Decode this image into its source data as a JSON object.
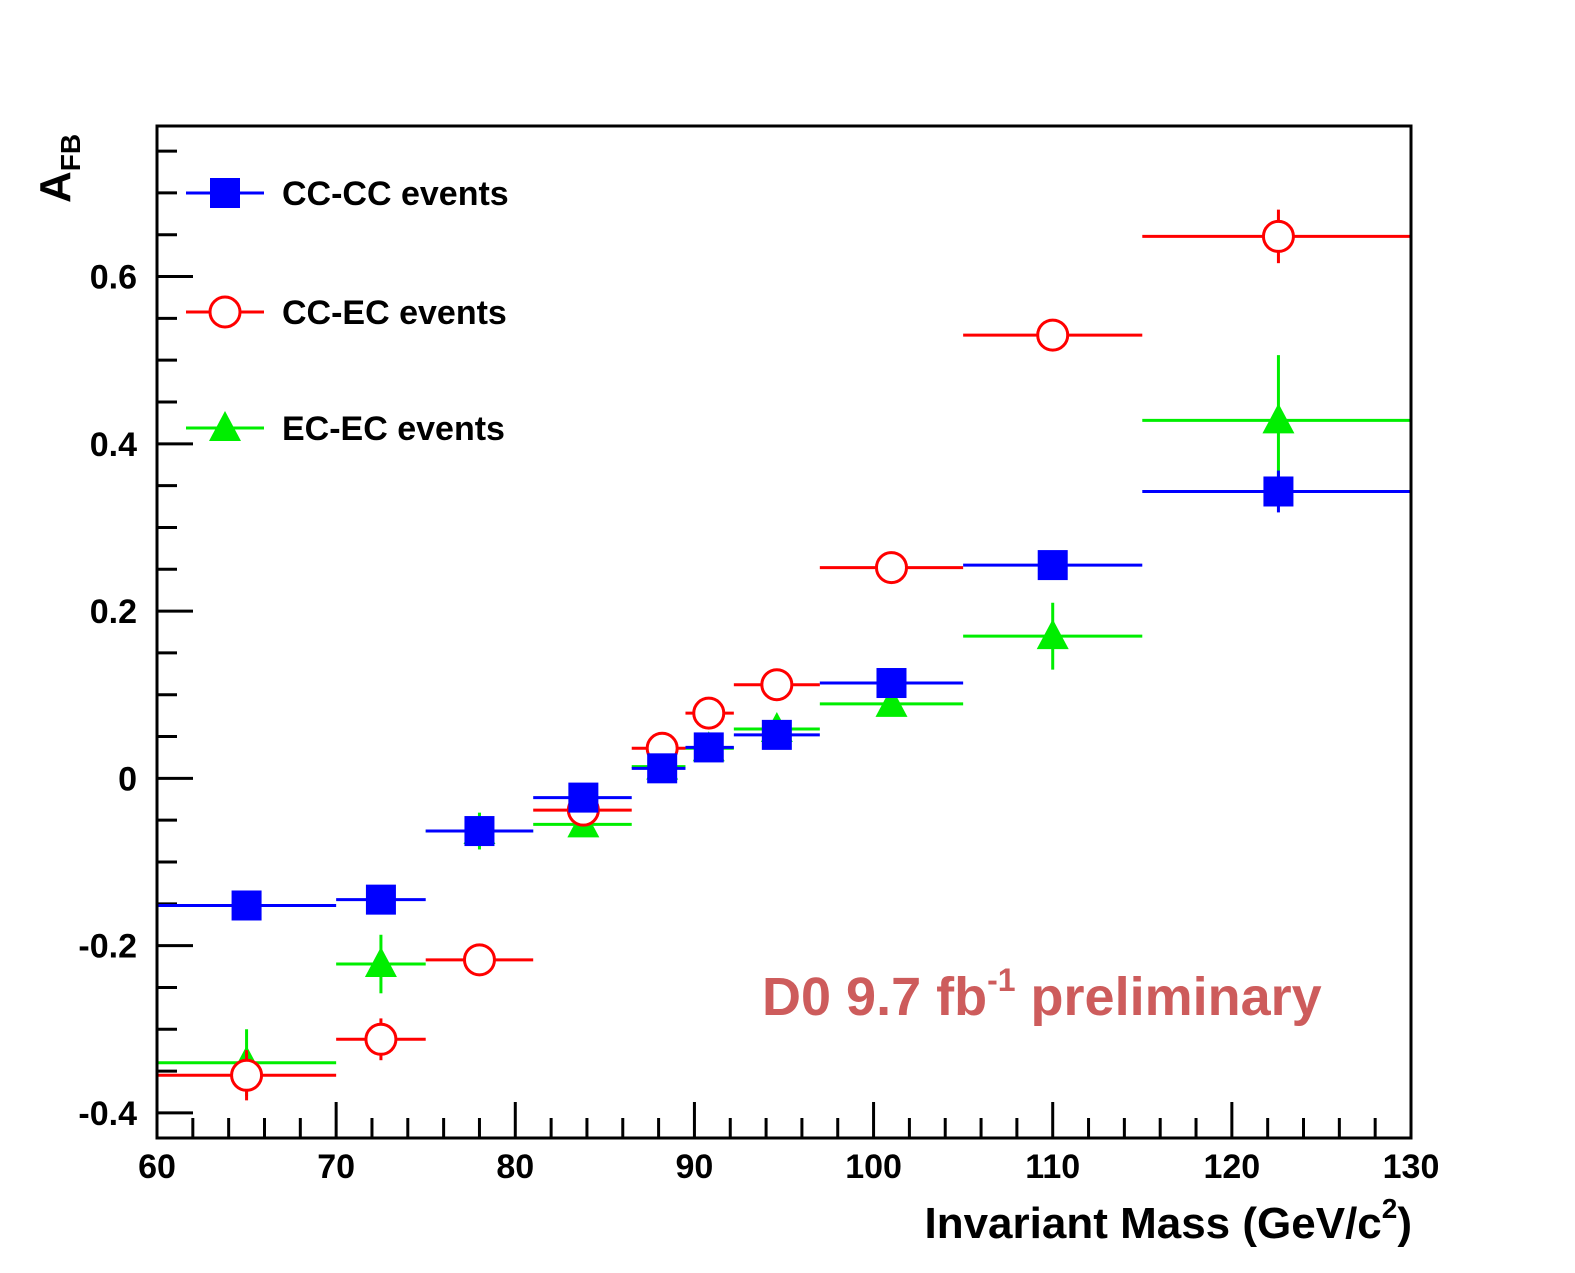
{
  "chart_data": {
    "type": "scatter",
    "title": "",
    "xlabel": "Invariant Mass (GeV/c",
    "xlabel_sup": "2",
    "xlabel_end": ")",
    "ylabel": "A",
    "ylabel_sub": "FB",
    "xlim": [
      60,
      130
    ],
    "ylim": [
      -0.43,
      0.78
    ],
    "x_ticks": [
      60,
      70,
      80,
      90,
      100,
      110,
      120,
      130
    ],
    "x_tick_labels": [
      "60",
      "70",
      "80",
      "90",
      "100",
      "110",
      "120",
      "130"
    ],
    "y_ticks": [
      -0.4,
      -0.2,
      0,
      0.2,
      0.4,
      0.6
    ],
    "y_tick_labels": [
      "-0.4",
      "-0.2",
      "0",
      "0.2",
      "0.4",
      "0.6"
    ],
    "grid": false,
    "legend_position": "top-left",
    "annotation": {
      "text": "D0 9.7 fb",
      "sup": "-1",
      "text_end": " preliminary",
      "color": "#cd5c5c"
    },
    "series": [
      {
        "name": "CC-CC events",
        "color": "#0000ff",
        "marker": "square-filled",
        "points": [
          {
            "x": 65,
            "xlo": 60,
            "xhi": 70,
            "y": -0.152,
            "err": 0.01
          },
          {
            "x": 72.5,
            "xlo": 70,
            "xhi": 75,
            "y": -0.145,
            "err": 0.01
          },
          {
            "x": 78,
            "xlo": 75,
            "xhi": 81,
            "y": -0.063,
            "err": 0.008
          },
          {
            "x": 83.8,
            "xlo": 81,
            "xhi": 86.5,
            "y": -0.023,
            "err": 0.008
          },
          {
            "x": 88.2,
            "xlo": 86.5,
            "xhi": 89.5,
            "y": 0.012,
            "err": 0.005
          },
          {
            "x": 90.8,
            "xlo": 89.5,
            "xhi": 92.2,
            "y": 0.037,
            "err": 0.004
          },
          {
            "x": 94.6,
            "xlo": 92.2,
            "xhi": 97,
            "y": 0.052,
            "err": 0.005
          },
          {
            "x": 101,
            "xlo": 97,
            "xhi": 105,
            "y": 0.114,
            "err": 0.01
          },
          {
            "x": 110,
            "xlo": 105,
            "xhi": 115,
            "y": 0.255,
            "err": 0.015
          },
          {
            "x": 122.6,
            "xlo": 115,
            "xhi": 130,
            "y": 0.343,
            "err": 0.025
          }
        ]
      },
      {
        "name": "CC-EC events",
        "color": "#ff0000",
        "marker": "circle-open",
        "points": [
          {
            "x": 65,
            "xlo": 60,
            "xhi": 70,
            "y": -0.355,
            "err": 0.03
          },
          {
            "x": 72.5,
            "xlo": 70,
            "xhi": 75,
            "y": -0.312,
            "err": 0.025
          },
          {
            "x": 78,
            "xlo": 75,
            "xhi": 81,
            "y": -0.217,
            "err": 0.01
          },
          {
            "x": 83.8,
            "xlo": 81,
            "xhi": 86.5,
            "y": -0.038,
            "err": 0.008
          },
          {
            "x": 88.2,
            "xlo": 86.5,
            "xhi": 89.5,
            "y": 0.036,
            "err": 0.005
          },
          {
            "x": 90.8,
            "xlo": 89.5,
            "xhi": 92.2,
            "y": 0.078,
            "err": 0.005
          },
          {
            "x": 94.6,
            "xlo": 92.2,
            "xhi": 97,
            "y": 0.112,
            "err": 0.005
          },
          {
            "x": 101,
            "xlo": 97,
            "xhi": 105,
            "y": 0.252,
            "err": 0.01
          },
          {
            "x": 110,
            "xlo": 105,
            "xhi": 115,
            "y": 0.53,
            "err": 0.018
          },
          {
            "x": 122.6,
            "xlo": 115,
            "xhi": 130,
            "y": 0.648,
            "err": 0.032
          }
        ]
      },
      {
        "name": "EC-EC events",
        "color": "#00ee00",
        "marker": "triangle-filled",
        "points": [
          {
            "x": 65,
            "xlo": 60,
            "xhi": 70,
            "y": -0.34,
            "err": 0.04
          },
          {
            "x": 72.5,
            "xlo": 70,
            "xhi": 75,
            "y": -0.222,
            "err": 0.035
          },
          {
            "x": 78,
            "xlo": 75,
            "xhi": 81,
            "y": -0.063,
            "err": 0.022
          },
          {
            "x": 83.8,
            "xlo": 81,
            "xhi": 86.5,
            "y": -0.055,
            "err": 0.012
          },
          {
            "x": 88.2,
            "xlo": 86.5,
            "xhi": 89.5,
            "y": 0.014,
            "err": 0.008
          },
          {
            "x": 90.8,
            "xlo": 89.5,
            "xhi": 92.2,
            "y": 0.036,
            "err": 0.006
          },
          {
            "x": 94.6,
            "xlo": 92.2,
            "xhi": 97,
            "y": 0.059,
            "err": 0.008
          },
          {
            "x": 101,
            "xlo": 97,
            "xhi": 105,
            "y": 0.089,
            "err": 0.015
          },
          {
            "x": 110,
            "xlo": 105,
            "xhi": 115,
            "y": 0.17,
            "err": 0.04
          },
          {
            "x": 122.6,
            "xlo": 115,
            "xhi": 130,
            "y": 0.428,
            "err": 0.078
          }
        ]
      }
    ]
  }
}
